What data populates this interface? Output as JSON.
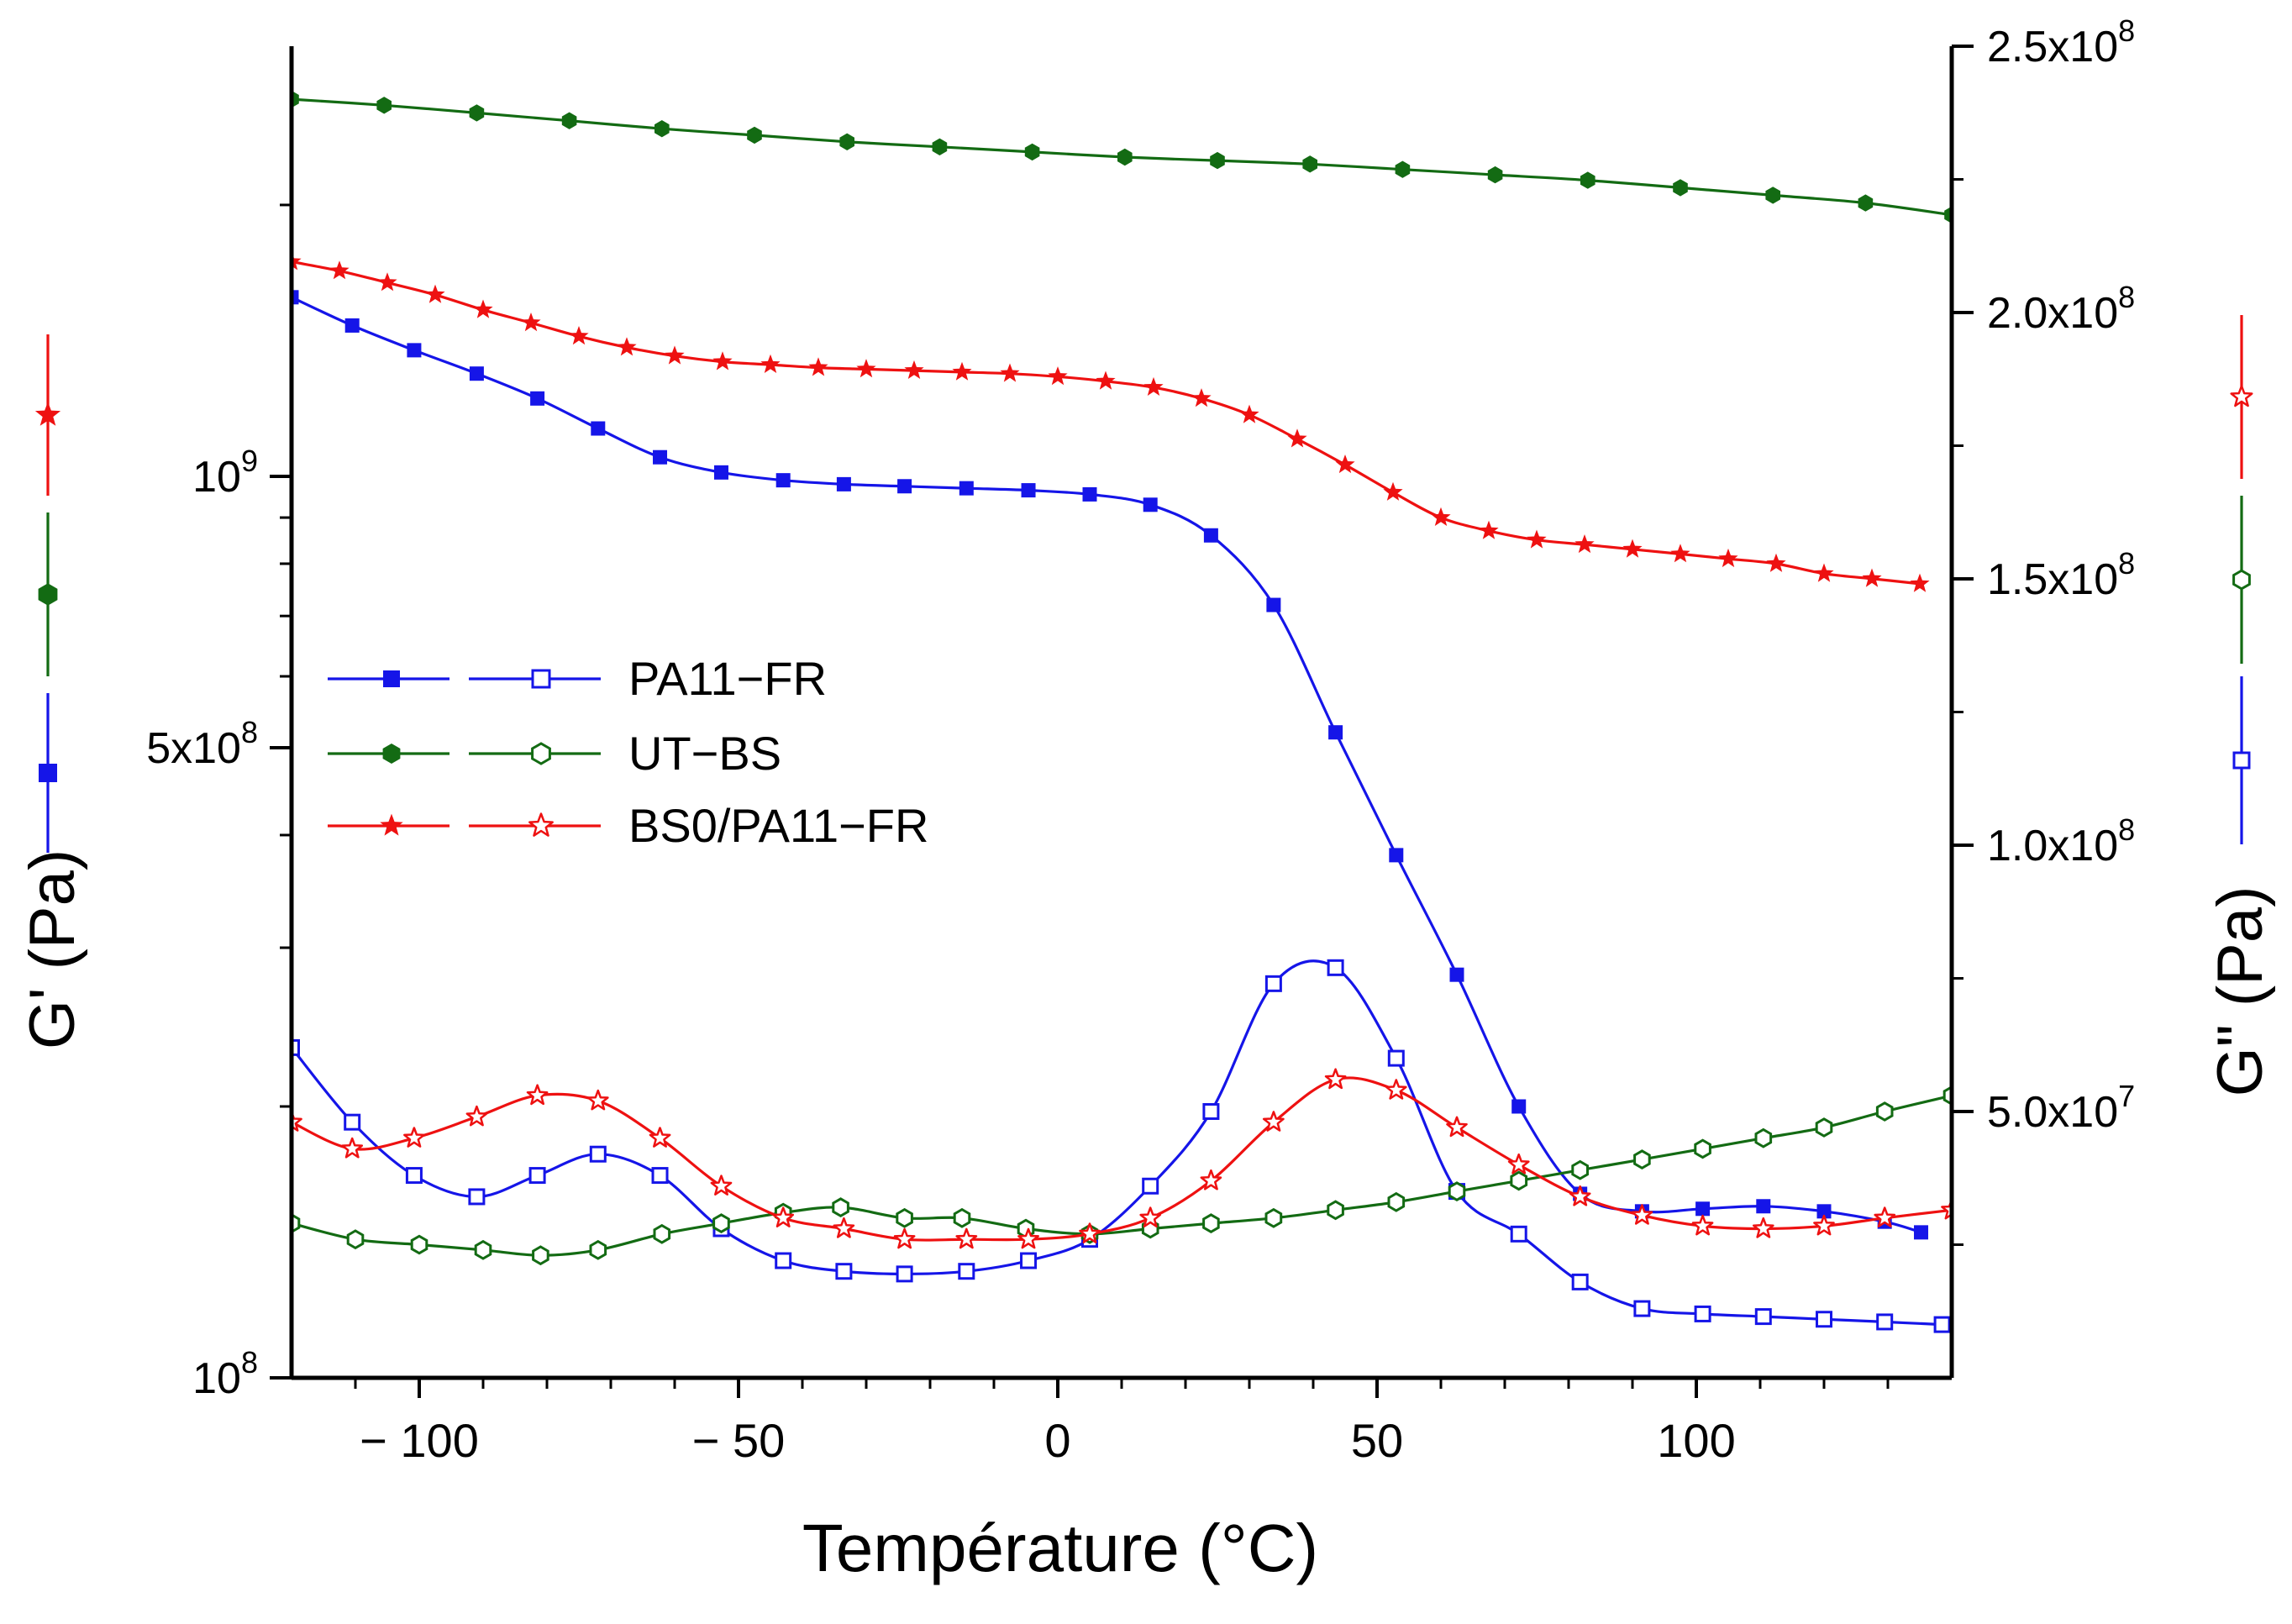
{
  "chart_data": {
    "type": "line",
    "xlabel": "Température (°C)",
    "ylabel_left": "G' (Pa)",
    "ylabel_right": "G\" (Pa)",
    "xlim": [
      -120,
      140
    ],
    "ylim_left": [
      100000000,
      3000000000
    ],
    "ylim_left_scale": "log",
    "ylim_right": [
      0,
      250000000
    ],
    "ylim_right_scale": "linear",
    "x_ticks": [
      {
        "value": -100,
        "label": "− 100"
      },
      {
        "value": -50,
        "label": "− 50"
      },
      {
        "value": 0,
        "label": "0"
      },
      {
        "value": 50,
        "label": "50"
      },
      {
        "value": 100,
        "label": "100"
      }
    ],
    "y_left_ticks": [
      {
        "value": 100000000,
        "base": "10",
        "exp": "8"
      },
      {
        "value": 500000000,
        "base": "5x10",
        "exp": "8"
      },
      {
        "value": 1000000000,
        "base": "10",
        "exp": "9"
      }
    ],
    "y_right_ticks": [
      {
        "value": 50000000,
        "base": "5.0x10",
        "exp": "7"
      },
      {
        "value": 100000000,
        "base": "1.0x10",
        "exp": "8"
      },
      {
        "value": 150000000,
        "base": "1.5x10",
        "exp": "8"
      },
      {
        "value": 200000000,
        "base": "2.0x10",
        "exp": "8"
      },
      {
        "value": 250000000,
        "base": "2.5x10",
        "exp": "8"
      }
    ],
    "legend_position": "middle-left",
    "series": [
      {
        "name": "PA11−FR",
        "color": "#1515e8",
        "marker": "square",
        "g_prime_axis": "left",
        "g_prime": {
          "x": [
            -120,
            -110.5,
            -100.8,
            -91,
            -81.5,
            -72,
            -62.3,
            -52.7,
            -43,
            -33.5,
            -24,
            -14.3,
            -4.6,
            5,
            14.5,
            24,
            33.8,
            43.5,
            53,
            62.5,
            72.2,
            81.8,
            91.5,
            101,
            110.5,
            120,
            129.5,
            135.2
          ],
          "y": [
            1580000000.0,
            1470000000.0,
            1380000000.0,
            1300000000.0,
            1220000000.0,
            1130000000.0,
            1050000000.0,
            1010000000.0,
            990000000.0,
            980000000.0,
            975000000.0,
            970000000.0,
            965000000.0,
            955000000.0,
            930000000.0,
            860000000.0,
            720000000.0,
            520000000.0,
            380000000.0,
            280000000.0,
            200000000.0,
            160000000.0,
            153000000.0,
            154000000.0,
            155000000.0,
            153000000.0,
            149000000.0,
            145000000.0
          ]
        },
        "g_double_prime_axis": "right",
        "g_double_prime": {
          "x": [
            -120,
            -110.5,
            -100.8,
            -91,
            -81.5,
            -72,
            -62.3,
            -52.7,
            -43,
            -33.5,
            -24,
            -14.3,
            -4.6,
            5,
            14.5,
            24,
            33.8,
            43.5,
            53,
            62.5,
            72.2,
            81.8,
            91.5,
            101,
            110.5,
            120,
            129.5,
            138.5
          ],
          "y": [
            62000000.0,
            48000000.0,
            38000000.0,
            34000000.0,
            38000000.0,
            42000000.0,
            38000000.0,
            28000000.0,
            22000000.0,
            20000000.0,
            19500000.0,
            20000000.0,
            22000000.0,
            26000000.0,
            36000000.0,
            50000000.0,
            74000000.0,
            77000000.0,
            60000000.0,
            35000000.0,
            27000000.0,
            18000000.0,
            13000000.0,
            12000000.0,
            11500000.0,
            11000000.0,
            10500000.0,
            10000000.0
          ]
        }
      },
      {
        "name": "UT−BS",
        "color": "#136b13",
        "marker": "hexagon",
        "g_prime_axis": "left",
        "g_prime": {
          "x": [
            -120,
            -105.5,
            -91,
            -76.5,
            -62,
            -47.5,
            -33,
            -18.5,
            -4,
            10.5,
            25,
            39.5,
            54,
            68.5,
            83,
            97.5,
            112,
            126.5,
            140
          ],
          "y": [
            2620000000.0,
            2580000000.0,
            2530000000.0,
            2480000000.0,
            2430000000.0,
            2390000000.0,
            2350000000.0,
            2320000000.0,
            2290000000.0,
            2260000000.0,
            2240000000.0,
            2220000000.0,
            2190000000.0,
            2160000000.0,
            2130000000.0,
            2090000000.0,
            2050000000.0,
            2010000000.0,
            1950000000.0
          ]
        },
        "g_double_prime_axis": "right",
        "g_double_prime": {
          "x": [
            -120,
            -110,
            -100,
            -90,
            -81,
            -72,
            -62,
            -52.7,
            -43,
            -34,
            -24,
            -15,
            -5,
            5,
            14.5,
            24,
            33.8,
            43.5,
            53,
            62.5,
            72.2,
            81.8,
            91.5,
            101,
            110.5,
            120,
            129.5,
            140
          ],
          "y": [
            29000000.0,
            26000000.0,
            25000000.0,
            24000000.0,
            23000000.0,
            24000000.0,
            27000000.0,
            29000000.0,
            31000000.0,
            32000000.0,
            30000000.0,
            30000000.0,
            28000000.0,
            27000000.0,
            28000000.0,
            29000000.0,
            30000000.0,
            31500000.0,
            33000000.0,
            35000000.0,
            37000000.0,
            39000000.0,
            41000000.0,
            43000000.0,
            45000000.0,
            47000000.0,
            50000000.0,
            53000000.0
          ]
        }
      },
      {
        "name": "BS0/PA11−FR",
        "color": "#ee1111",
        "marker": "star",
        "g_prime_axis": "left",
        "g_prime": {
          "x": [
            -120,
            -112.5,
            -105,
            -97.5,
            -90,
            -82.5,
            -75,
            -67.5,
            -60,
            -52.5,
            -45,
            -37.5,
            -30,
            -22.5,
            -15,
            -7.5,
            0,
            7.5,
            15,
            22.5,
            30,
            37.5,
            45,
            52.5,
            60,
            67.5,
            75,
            82.5,
            90,
            97.5,
            105,
            112.5,
            120,
            127.5,
            135
          ],
          "y": [
            1730000000.0,
            1690000000.0,
            1640000000.0,
            1590000000.0,
            1530000000.0,
            1480000000.0,
            1430000000.0,
            1390000000.0,
            1360000000.0,
            1340000000.0,
            1330000000.0,
            1320000000.0,
            1315000000.0,
            1310000000.0,
            1305000000.0,
            1300000000.0,
            1290000000.0,
            1275000000.0,
            1255000000.0,
            1220000000.0,
            1170000000.0,
            1100000000.0,
            1030000000.0,
            960000000.0,
            900000000.0,
            870000000.0,
            850000000.0,
            840000000.0,
            830000000.0,
            820000000.0,
            810000000.0,
            800000000.0,
            780000000.0,
            770000000.0,
            760000000.0
          ]
        },
        "g_double_prime_axis": "right",
        "g_double_prime": {
          "x": [
            -120,
            -110.5,
            -100.8,
            -91,
            -81.5,
            -72,
            -62.3,
            -52.7,
            -43,
            -33.5,
            -24,
            -14.3,
            -4.6,
            5,
            14.5,
            24,
            33.8,
            43.5,
            53,
            62.5,
            72.2,
            81.8,
            91.5,
            101,
            110.5,
            120,
            129.5,
            140
          ],
          "y": [
            48000000.0,
            43000000.0,
            45000000.0,
            49000000.0,
            53000000.0,
            52000000.0,
            45000000.0,
            36000000.0,
            30000000.0,
            28000000.0,
            26000000.0,
            26000000.0,
            26000000.0,
            27000000.0,
            30000000.0,
            37000000.0,
            48000000.0,
            56000000.0,
            54000000.0,
            47000000.0,
            40000000.0,
            34000000.0,
            30500000.0,
            28500000.0,
            28000000.0,
            28500000.0,
            30000000.0,
            31500000.0
          ]
        }
      }
    ]
  }
}
